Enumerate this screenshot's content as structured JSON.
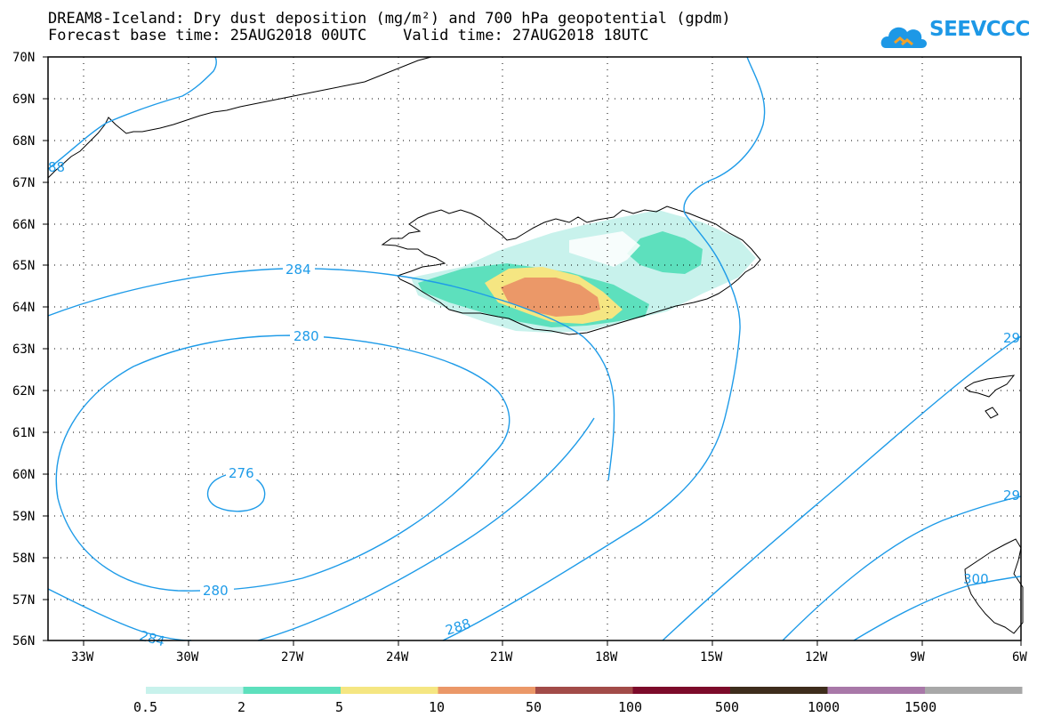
{
  "title": {
    "line1": "DREAM8-Iceland: Dry dust deposition (mg/m²) and 700 hPa geopotential (gpdm)",
    "line2": "Forecast base time: 25AUG2018 00UTC    Valid time: 27AUG2018 18UTC"
  },
  "logo": {
    "text": "SEEVCCC",
    "icon": "cloud-logo-icon",
    "color": "#1d98e6"
  },
  "axes": {
    "lat_labels": [
      "70N",
      "69N",
      "68N",
      "67N",
      "66N",
      "65N",
      "64N",
      "63N",
      "62N",
      "61N",
      "60N",
      "59N",
      "58N",
      "57N",
      "56N"
    ],
    "lon_labels": [
      "33W",
      "30W",
      "27W",
      "24W",
      "21W",
      "18W",
      "15W",
      "12W",
      "9W",
      "6W"
    ],
    "lat_range": [
      56,
      70
    ],
    "lon_range": [
      -34.5,
      -6
    ]
  },
  "contours": {
    "color": "#1e9be8",
    "labels": [
      "284",
      "280",
      "276",
      "280",
      "284",
      "288",
      "284",
      "29",
      "29",
      "300",
      "88"
    ]
  },
  "legend": {
    "colors": [
      "#c8f2ec",
      "#5de0bd",
      "#f5e682",
      "#eb9868",
      "#a24b48",
      "#7c0b2a",
      "#3e2d1c",
      "#a878a8",
      "#a8a8a8"
    ],
    "labels": [
      "0.5",
      "2",
      "5",
      "10",
      "50",
      "100",
      "500",
      "1000",
      "1500"
    ]
  },
  "dust_colors": {
    "light": "#c8f2ec",
    "green": "#5de0bd",
    "yellow": "#f5e682",
    "orange": "#eb9868"
  }
}
